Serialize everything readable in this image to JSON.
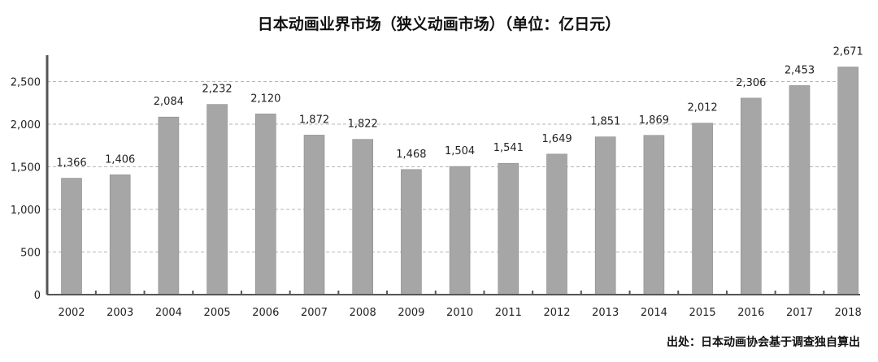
{
  "chart_data": {
    "type": "bar",
    "title": "日本动画业界市场（狭义动画市场）（单位：亿日元）",
    "source": "出处：日本动画协会基于调查独自算出",
    "categories": [
      "2002",
      "2003",
      "2004",
      "2005",
      "2006",
      "2007",
      "2008",
      "2009",
      "2010",
      "2011",
      "2012",
      "2013",
      "2014",
      "2015",
      "2016",
      "2017",
      "2018"
    ],
    "values": [
      1366,
      1406,
      2084,
      2232,
      2120,
      1872,
      1822,
      1468,
      1504,
      1541,
      1649,
      1851,
      1869,
      2012,
      2306,
      2453,
      2671
    ],
    "data_labels": [
      "1,366",
      "1,406",
      "2,084",
      "2,232",
      "2,120",
      "1,872",
      "1,822",
      "1,468",
      "1,504",
      "1,541",
      "1,649",
      "1,851",
      "1,869",
      "2,012",
      "2,306",
      "2,453",
      "2,671"
    ],
    "yticks": [
      0,
      500,
      1000,
      1500,
      2000,
      2500
    ],
    "ytick_labels": [
      "0",
      "500",
      "1,000",
      "1,500",
      "2,000",
      "2,500"
    ],
    "ylim": [
      0,
      2800
    ],
    "xlabel": "",
    "ylabel": "",
    "grid": true,
    "legend": "none",
    "colors": {
      "bar": "#a6a6a6",
      "bar_edge": "#8c8c8c",
      "grid": "#b5b5b5",
      "axis": "#555555"
    }
  }
}
